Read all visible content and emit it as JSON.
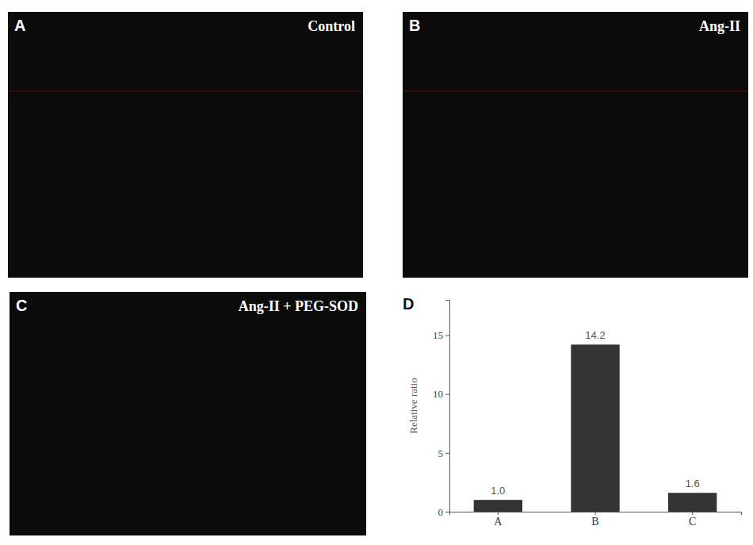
{
  "figure": {
    "panels": [
      {
        "letter": "A",
        "title": "Control"
      },
      {
        "letter": "B",
        "title": "Ang-II"
      },
      {
        "letter": "C",
        "title": "Ang-II + PEG-SOD"
      }
    ],
    "chart_letter": "D"
  },
  "chart_data": {
    "type": "bar",
    "y_label": "Relative ratio",
    "categories": [
      "A",
      "B",
      "C"
    ],
    "values": [
      1.0,
      14.2,
      1.6
    ],
    "value_labels": [
      "1.0",
      "14.2",
      "1.6"
    ],
    "data_labels": true,
    "color": "#333333",
    "ylim": [
      0,
      18
    ],
    "yticks": [
      0,
      5,
      10,
      15
    ],
    "grid": false
  }
}
